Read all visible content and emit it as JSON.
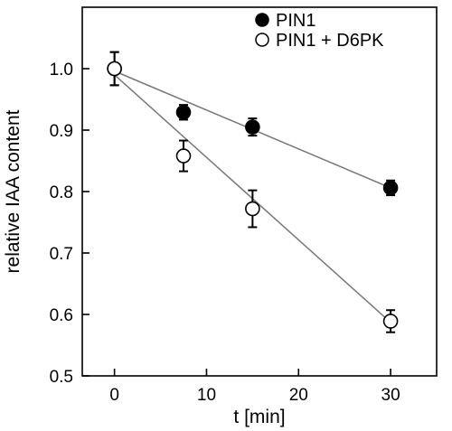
{
  "chart_data": {
    "type": "scatter",
    "title": "",
    "xlabel": "t [min]",
    "ylabel": "relative IAA content",
    "xlim": [
      -3.5,
      35
    ],
    "ylim": [
      0.5,
      1.1
    ],
    "xticks": [
      0,
      10,
      20,
      30
    ],
    "yticks": [
      0.5,
      0.6,
      0.7,
      0.8,
      0.9,
      1.0
    ],
    "xtick_labels": [
      "0",
      "10",
      "20",
      "30"
    ],
    "ytick_labels": [
      "0.5",
      "0.6",
      "0.7",
      "0.8",
      "0.9",
      "1.0"
    ],
    "grid": false,
    "legend_position": "top-right",
    "series": [
      {
        "name": "PIN1",
        "marker": "filled-circle",
        "x": [
          0,
          7.5,
          15,
          30
        ],
        "y": [
          1.0,
          0.929,
          0.905,
          0.806
        ],
        "err": [
          0.027,
          0.012,
          0.014,
          0.012
        ],
        "fit": {
          "x": [
            0,
            30
          ],
          "y": [
            0.996,
            0.806
          ]
        }
      },
      {
        "name": "PIN1 + D6PK",
        "marker": "open-circle",
        "x": [
          0,
          7.5,
          15,
          30
        ],
        "y": [
          1.0,
          0.858,
          0.772,
          0.589
        ],
        "err": [
          0.027,
          0.025,
          0.03,
          0.018
        ],
        "fit": {
          "x": [
            0,
            30
          ],
          "y": [
            0.99,
            0.587
          ]
        }
      }
    ]
  }
}
